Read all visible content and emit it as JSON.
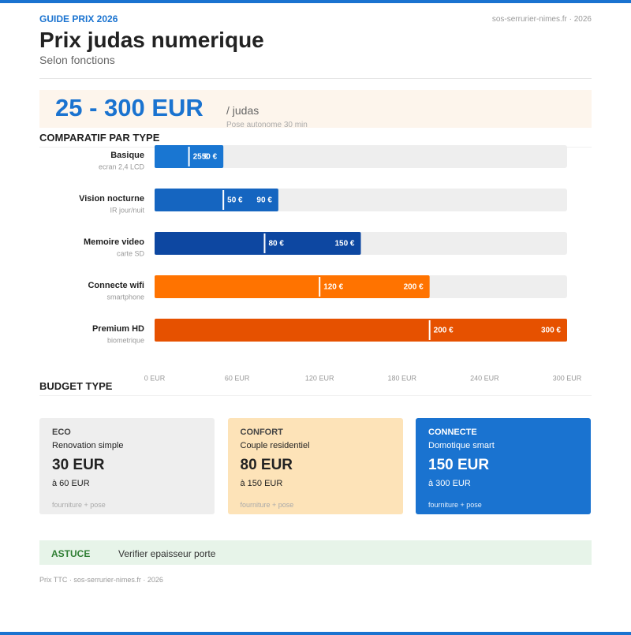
{
  "header": {
    "kicker": "GUIDE PRIX 2026",
    "site": "sos-serrurier-nimes.fr · 2026",
    "title": "Prix judas numerique",
    "subtitle": "Selon fonctions"
  },
  "hero": {
    "price": "25 - 300 EUR",
    "unit": "/ judas",
    "note": "Pose autonome 30 min"
  },
  "chart_data": {
    "type": "range-bar",
    "title": "COMPARATIF PAR TYPE",
    "categories": [
      "Basique",
      "Vision nocturne",
      "Memoire video",
      "Connecte wifi",
      "Premium HD"
    ],
    "sublabels": [
      "ecran 2,4 LCD",
      "IR jour/nuit",
      "carte SD",
      "smartphone",
      "biometrique"
    ],
    "min_values": [
      25,
      50,
      80,
      120,
      200
    ],
    "min_labels": [
      "25 €",
      "50 €",
      "80 €",
      "120 €",
      "200 €"
    ],
    "max_values": [
      50,
      90,
      150,
      200,
      300
    ],
    "max_labels": [
      "50 €",
      "90 €",
      "150 €",
      "200 €",
      "300 €"
    ],
    "colors": [
      "#1976d2",
      "#1565c0",
      "#0d47a1",
      "#ff7300",
      "#e65100"
    ],
    "xlim": [
      0,
      300
    ],
    "xticks": [
      {
        "value": 0,
        "label": "0 EUR"
      },
      {
        "value": 60,
        "label": "60 EUR"
      },
      {
        "value": 120,
        "label": "120 EUR"
      },
      {
        "value": 180,
        "label": "180 EUR"
      },
      {
        "value": 240,
        "label": "240 EUR"
      },
      {
        "value": 300,
        "label": "300 EUR"
      }
    ]
  },
  "budget": {
    "title": "BUDGET TYPE",
    "cards": [
      {
        "label": "ECO",
        "profile": "Renovation simple",
        "price": "30 EUR",
        "upto": "à 60 EUR",
        "note": "fourniture + pose"
      },
      {
        "label": "CONFORT",
        "profile": "Couple residentiel",
        "price": "80 EUR",
        "upto": "à 150 EUR",
        "note": "fourniture + pose"
      },
      {
        "label": "CONNECTE",
        "profile": "Domotique smart",
        "price": "150 EUR",
        "upto": "à 300 EUR",
        "note": "fourniture + pose"
      }
    ]
  },
  "tip": {
    "label": "ASTUCE",
    "text": "Verifier epaisseur porte"
  },
  "footer": "Prix TTC · sos-serrurier-nimes.fr · 2026"
}
